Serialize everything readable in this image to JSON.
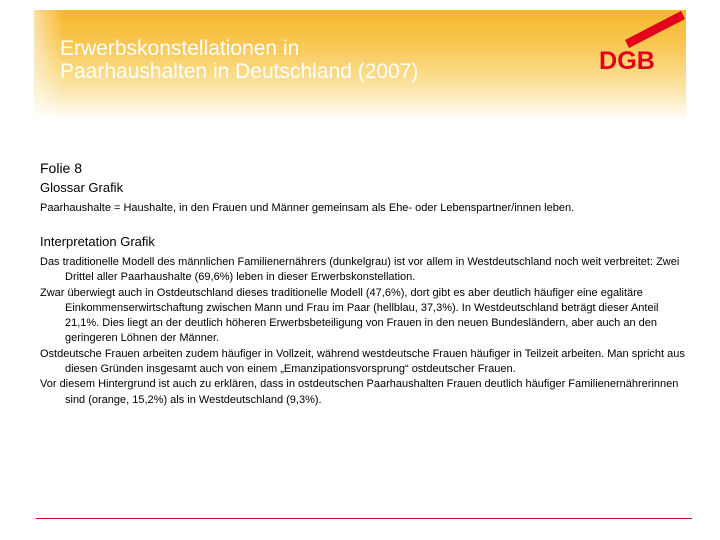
{
  "header": {
    "title_line1": "Erwerbskonstellationen in",
    "title_line2": "Paarhaushalten in Deutschland (2007)",
    "logo_text": "DGB",
    "logo_color": "#e2001a"
  },
  "content": {
    "folie": "Folie 8",
    "glossar_heading": "Glossar Grafik",
    "glossar_text": "Paarhaushalte = Haushalte, in den Frauen und Männer gemeinsam als Ehe- oder Lebenspartner/innen leben.",
    "interpretation_heading": "Interpretation Grafik",
    "paragraphs": [
      "Das traditionelle Modell des männlichen Familienernährers (dunkelgrau) ist vor allem in Westdeutschland noch weit verbreitet: Zwei Drittel aller Paarhaushalte (69,6%) leben in dieser Erwerbskonstellation.",
      "Zwar überwiegt auch in Ostdeutschland dieses traditionelle Modell (47,6%), dort gibt es aber deutlich häufiger eine egalitäre Einkommenserwirtschaftung zwischen Mann und Frau im Paar (hellblau, 37,3%). In Westdeutschland beträgt dieser Anteil 21,1%. Dies liegt an der deutlich höheren Erwerbsbeteiligung von Frauen in den neuen Bundesländern, aber auch an den geringeren Löhnen der Männer.",
      "Ostdeutsche Frauen arbeiten zudem häufiger in Vollzeit, während westdeutsche Frauen häufiger in Teilzeit arbeiten. Man spricht aus diesen Gründen insgesamt auch von einem „Emanzipationsvorsprung“ ostdeutscher Frauen.",
      "Vor diesem Hintergrund ist auch zu erklären, dass in ostdeutschen Paarhaushalten Frauen deutlich häufiger Familienernährerinnen sind (orange, 15,2%) als in Westdeutschland (9,3%)."
    ]
  },
  "colors": {
    "header_gradient_top": "#f7b62a",
    "footer_line": "#c8102e",
    "title_text": "#ffffff"
  }
}
